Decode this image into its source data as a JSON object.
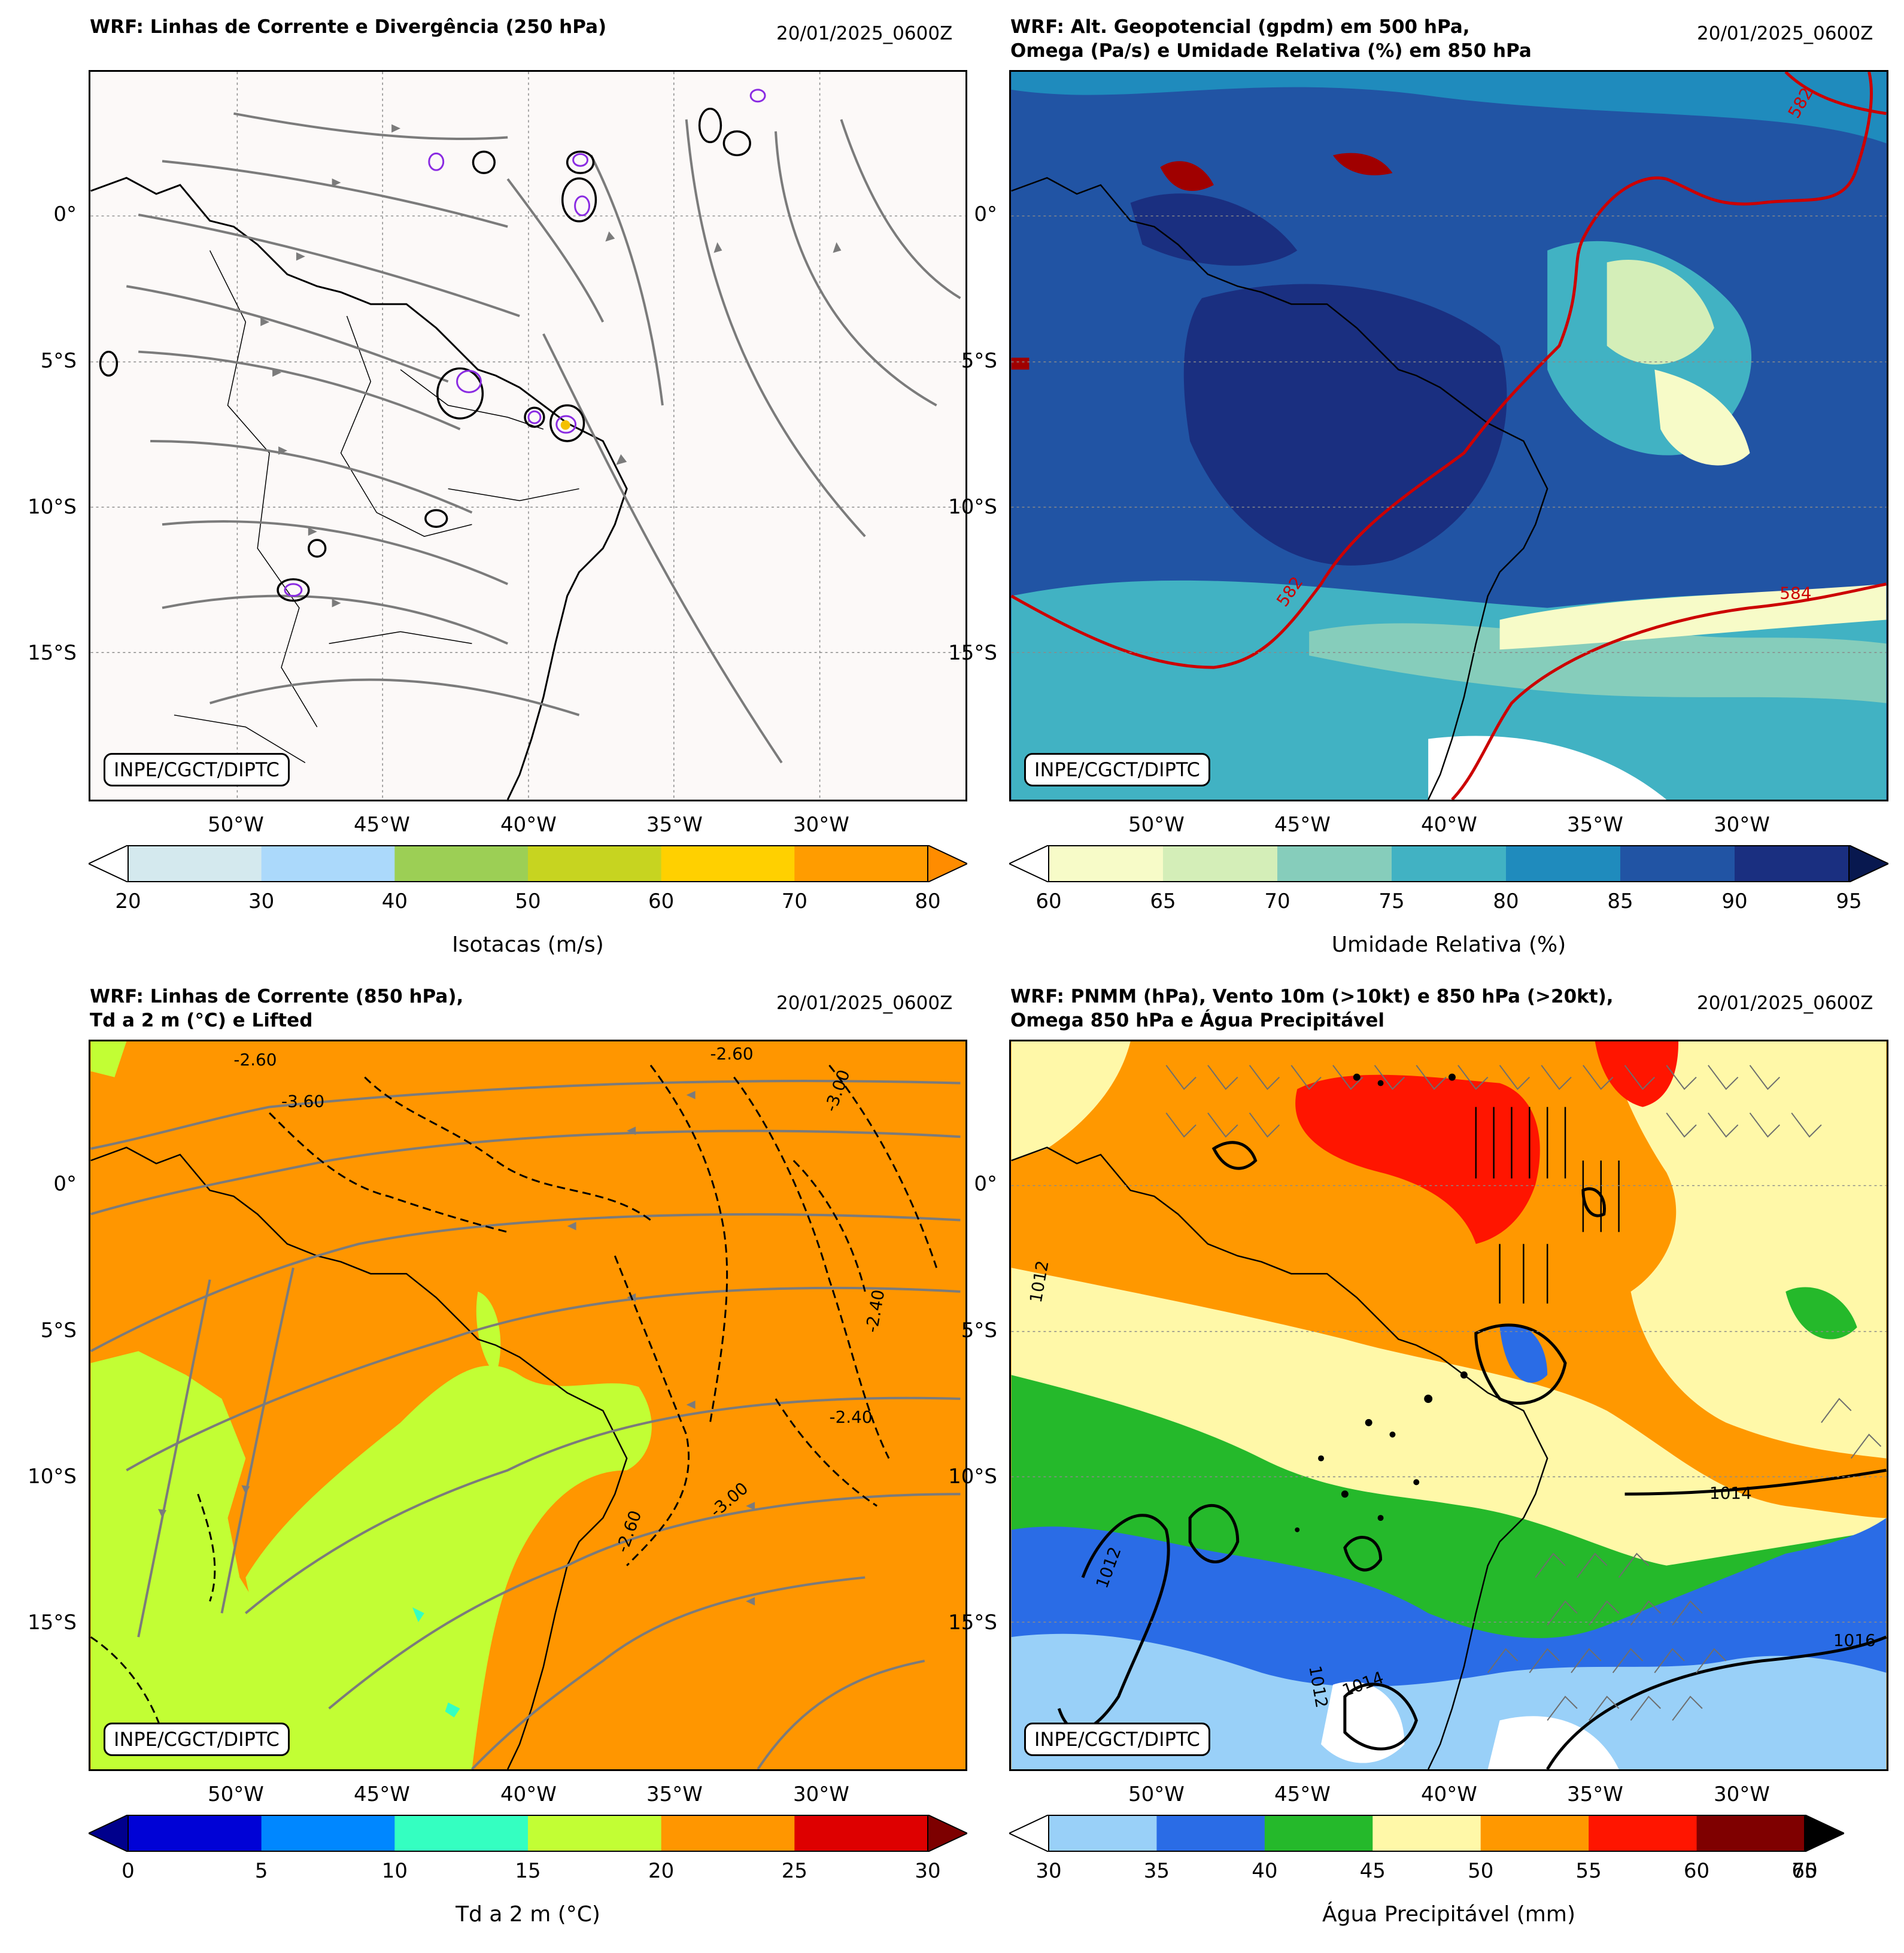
{
  "panels": [
    {
      "id": "p1",
      "title_lines": [
        "WRF: Linhas de Corrente e Divergência (250 hPa)"
      ],
      "date": "20/01/2025_0600Z",
      "credit": "INPE/CGCT/DIPTC",
      "y_ticks": [
        "0°",
        "5°S",
        "10°S",
        "15°S"
      ],
      "x_ticks": [
        "50°W",
        "45°W",
        "40°W",
        "35°W",
        "30°W"
      ],
      "colorbar": {
        "label": "Isotacas (m/s)",
        "ticks": [
          "20",
          "30",
          "40",
          "50",
          "60",
          "70",
          "80"
        ],
        "colors": [
          "#d4e9ee",
          "#abd9fb",
          "#9ccf55",
          "#c7d420",
          "#ffd000",
          "#ff9c00"
        ],
        "under_color": "#ffffff",
        "over_color": "#ff8c00"
      }
    },
    {
      "id": "p2",
      "title_lines": [
        "WRF: Alt. Geopotencial (gpdm) em 500 hPa,",
        "Omega (Pa/s) e Umidade Relativa (%) em 850 hPa"
      ],
      "date": "20/01/2025_0600Z",
      "credit": "INPE/CGCT/DIPTC",
      "y_ticks": [
        "0°",
        "5°S",
        "10°S",
        "15°S"
      ],
      "x_ticks": [
        "50°W",
        "45°W",
        "40°W",
        "35°W",
        "30°W"
      ],
      "contour_labels": [
        "582",
        "584",
        "582"
      ],
      "colorbar": {
        "label": "Umidade Relativa (%)",
        "ticks": [
          "60",
          "65",
          "70",
          "75",
          "80",
          "85",
          "90",
          "95"
        ],
        "colors": [
          "#f7fbc8",
          "#d4eeb8",
          "#86cdbb",
          "#41b2c3",
          "#1f8bbd",
          "#2154a4",
          "#1a2f80"
        ],
        "under_color": "#ffffff",
        "over_color": "#08184f"
      }
    },
    {
      "id": "p3",
      "title_lines": [
        "WRF: Linhas de Corrente (850 hPa),",
        "Td a 2 m (°C) e Lifted"
      ],
      "date": "20/01/2025_0600Z",
      "credit": "INPE/CGCT/DIPTC",
      "y_ticks": [
        "0°",
        "5°S",
        "10°S",
        "15°S"
      ],
      "x_ticks": [
        "50°W",
        "45°W",
        "40°W",
        "35°W",
        "30°W"
      ],
      "contour_labels": [
        "-2.60",
        "-3.60",
        "-2.60",
        "-3.00",
        "-2.40",
        "-2.40",
        "-2.60",
        "-3.00"
      ],
      "colorbar": {
        "label": "Td a 2 m (°C)",
        "ticks": [
          "0",
          "5",
          "10",
          "15",
          "20",
          "25",
          "30"
        ],
        "colors": [
          "#0002d6",
          "#0087ff",
          "#34ffc1",
          "#c2fe34",
          "#ff9600",
          "#de0000"
        ],
        "under_color": "#00008c",
        "over_color": "#7d0000"
      }
    },
    {
      "id": "p4",
      "title_lines": [
        "WRF: PNMM (hPa), Vento 10m (>10kt) e 850 hPa (>20kt),",
        "Omega 850 hPa e Água Precipitável"
      ],
      "date": "20/01/2025_0600Z",
      "credit": "INPE/CGCT/DIPTC",
      "y_ticks": [
        "0°",
        "5°S",
        "10°S",
        "15°S"
      ],
      "x_ticks": [
        "50°W",
        "45°W",
        "40°W",
        "35°W",
        "30°W"
      ],
      "contour_labels": [
        "1012",
        "1014",
        "1016",
        "1012",
        "1014",
        "1012"
      ],
      "colorbar": {
        "label": "Água Precipitável (mm)",
        "ticks": [
          "30",
          "35",
          "40",
          "45",
          "50",
          "55",
          "60",
          "70"
        ],
        "end_tick_overlap": "65",
        "colors": [
          "#99d0f8",
          "#2a6ce6",
          "#25b92b",
          "#fff8a8",
          "#ff9800",
          "#ff1500",
          "#7f0000"
        ],
        "under_color": "#ffffff",
        "over_color": "#000000"
      }
    }
  ]
}
